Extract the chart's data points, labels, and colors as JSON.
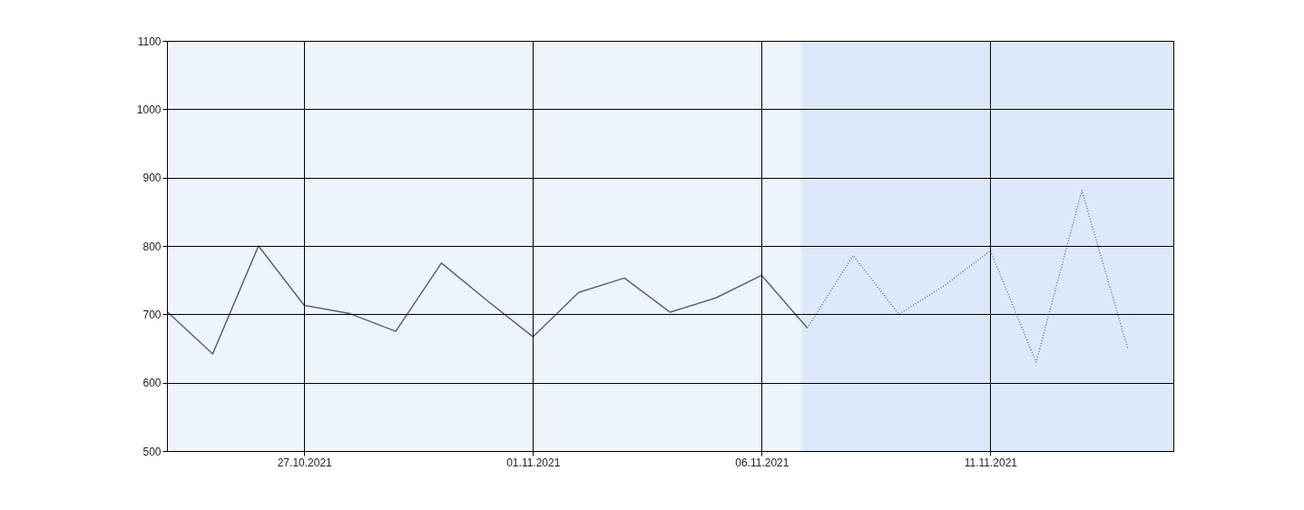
{
  "chart_data": {
    "type": "line",
    "x": [
      "2021-10-24",
      "2021-10-25",
      "2021-10-26",
      "2021-10-27",
      "2021-10-28",
      "2021-10-29",
      "2021-10-30",
      "2021-10-31",
      "2021-11-01",
      "2021-11-02",
      "2021-11-03",
      "2021-11-04",
      "2021-11-05",
      "2021-11-06",
      "2021-11-07",
      "2021-11-08",
      "2021-11-09",
      "2021-11-10",
      "2021-11-11",
      "2021-11-12",
      "2021-11-13",
      "2021-11-14"
    ],
    "series": [
      {
        "color": "#5c6272",
        "line_style": "solid",
        "values": [
          704,
          642,
          800,
          713,
          701,
          675,
          775,
          720,
          667,
          732,
          753,
          703,
          724,
          757,
          680,
          null,
          null,
          null,
          null,
          null,
          null,
          null
        ]
      },
      {
        "color": "#6e7484",
        "line_style": "dotted",
        "values": [
          null,
          null,
          null,
          null,
          null,
          null,
          null,
          null,
          null,
          null,
          null,
          null,
          null,
          null,
          680,
          786,
          700,
          742,
          793,
          630,
          881,
          651
        ]
      }
    ],
    "xlim": [
      "2021-10-24",
      "2021-11-15"
    ],
    "xticks": [
      {
        "value": "2021-10-27",
        "label": "27.10.2021"
      },
      {
        "value": "2021-11-01",
        "label": "01.11.2021"
      },
      {
        "value": "2021-11-06",
        "label": "06.11.2021"
      },
      {
        "value": "2021-11-11",
        "label": "11.11.2021"
      }
    ],
    "ylim": [
      500,
      1100
    ],
    "yticks": [
      500,
      600,
      700,
      800,
      900,
      1000,
      1100
    ],
    "bands": [
      {
        "axis": "x",
        "from": "2021-11-06T21:00",
        "to": "2021-11-15",
        "color": "#dde9fa"
      }
    ],
    "grid": true,
    "marker": "none"
  }
}
